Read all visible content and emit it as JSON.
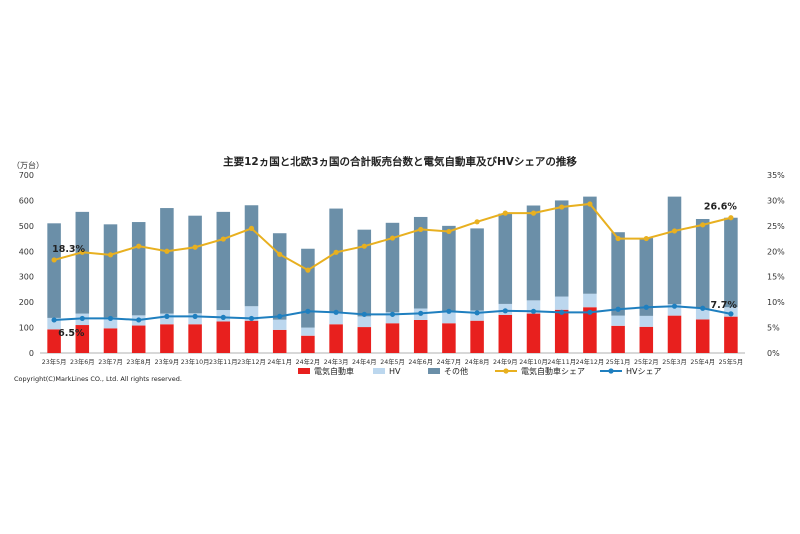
{
  "chart_data": {
    "type": "bar",
    "title": "主要12ヵ国と北欧3ヵ国の合計販売台数と電気自動車及びHVシェアの推移",
    "y_unit": "（万台）",
    "categories": [
      "23年5月",
      "23年6月",
      "23年7月",
      "23年8月",
      "23年9月",
      "23年10月",
      "23年11月",
      "23年12月",
      "24年1月",
      "24年2月",
      "24年3月",
      "24年4月",
      "24年5月",
      "24年6月",
      "24年7月",
      "24年8月",
      "24年9月",
      "24年10月",
      "24年11月",
      "24年12月",
      "25年1月",
      "25年2月",
      "25年3月",
      "25年4月",
      "25年5月"
    ],
    "ylim": [
      0,
      700
    ],
    "y_ticks": [
      "0",
      "100",
      "200",
      "300",
      "400",
      "500",
      "600",
      "700"
    ],
    "y2lim": [
      0,
      35
    ],
    "y2_ticks": [
      "0%",
      "5%",
      "10%",
      "15%",
      "20%",
      "25%",
      "30%",
      "35%"
    ],
    "stacked_series": [
      {
        "name": "電気自動車",
        "color": "#e8201e",
        "values": [
          93,
          110,
          97,
          108,
          113,
          113,
          124,
          127,
          91,
          68,
          113,
          102,
          117,
          130,
          117,
          127,
          150,
          155,
          170,
          180,
          107,
          103,
          147,
          132,
          143
        ]
      },
      {
        "name": "HV",
        "color": "#bcd7ee",
        "values": [
          45,
          45,
          43,
          40,
          42,
          43,
          45,
          57,
          40,
          32,
          45,
          42,
          43,
          45,
          43,
          40,
          43,
          52,
          52,
          53,
          40,
          43,
          45,
          43,
          37
        ]
      },
      {
        "name": "その他",
        "color": "#6b8fa8",
        "values": [
          372,
          400,
          366,
          367,
          415,
          384,
          386,
          397,
          340,
          310,
          410,
          341,
          352,
          360,
          340,
          323,
          355,
          373,
          378,
          382,
          328,
          306,
          423,
          352,
          352
        ]
      }
    ],
    "line_series": [
      {
        "name": "電気自動車シェア",
        "color": "#e8b020",
        "values": [
          18.3,
          19.8,
          19.3,
          21.0,
          20.0,
          20.8,
          22.4,
          24.5,
          19.4,
          16.3,
          19.8,
          21.0,
          22.6,
          24.3,
          23.9,
          25.8,
          27.5,
          27.5,
          28.7,
          29.3,
          22.5,
          22.5,
          24.0,
          25.2,
          26.6
        ]
      },
      {
        "name": "HVシェア",
        "color": "#1f7fbf",
        "values": [
          6.5,
          6.8,
          6.8,
          6.5,
          7.2,
          7.2,
          7.0,
          6.8,
          7.2,
          8.2,
          8.0,
          7.6,
          7.6,
          7.8,
          8.2,
          7.9,
          8.3,
          8.2,
          8.0,
          8.0,
          8.6,
          9.0,
          9.2,
          8.8,
          7.7
        ]
      }
    ],
    "data_labels": {
      "ev_first": "18.3%",
      "ev_last": "26.6%",
      "hv_first": "6.5%",
      "hv_last": "7.7%"
    },
    "legend_position": "bottom",
    "grid": false
  },
  "copyright": "Copyright(C)MarkLines CO., Ltd. All rights reserved."
}
